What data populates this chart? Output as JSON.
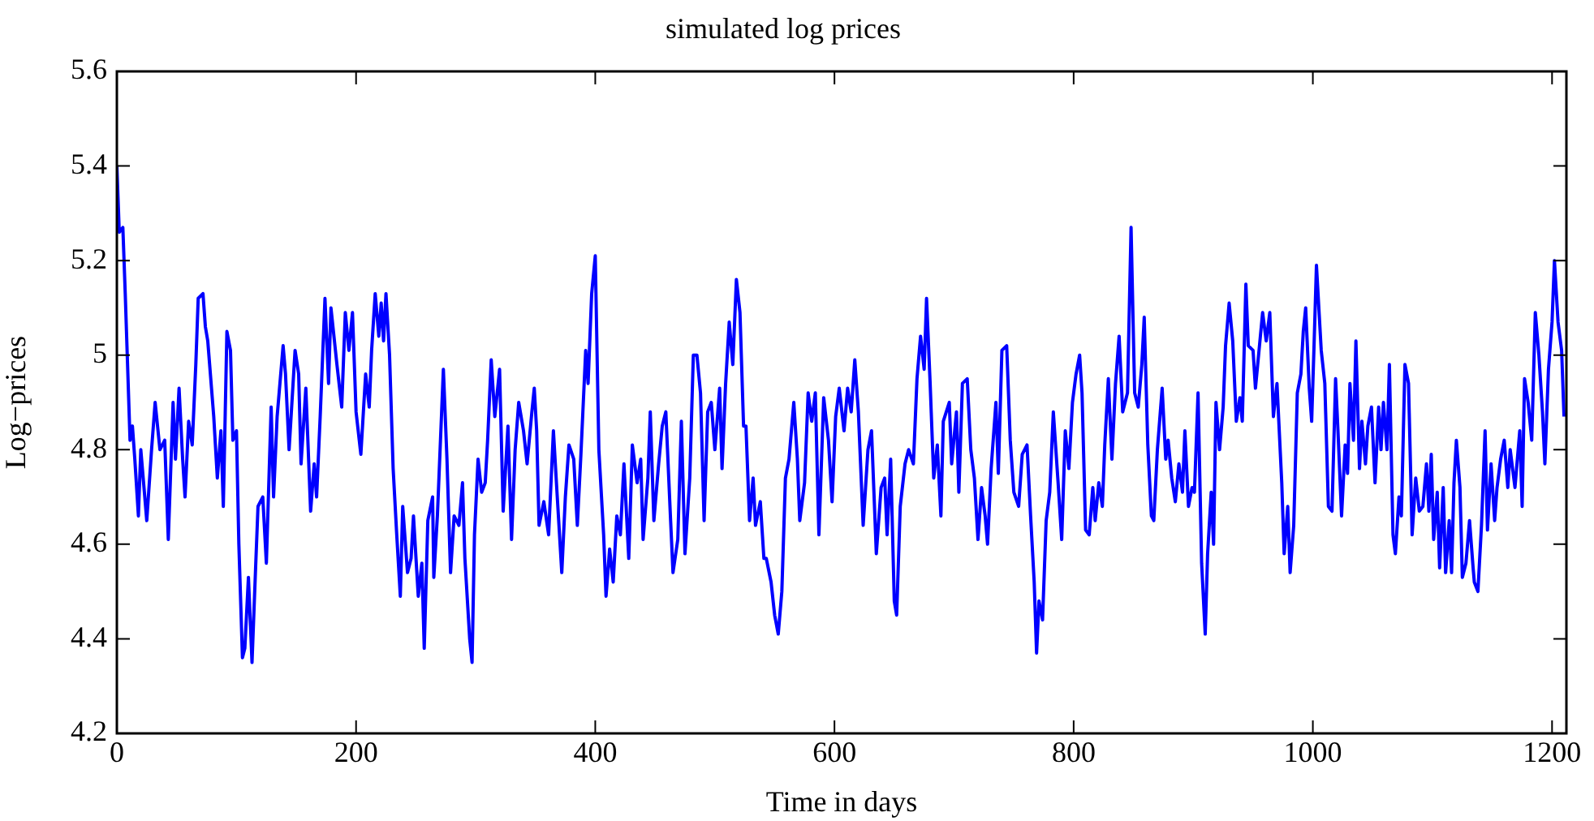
{
  "chart_data": {
    "type": "line",
    "title": "simulated log prices",
    "xlabel": "Time in days",
    "ylabel": "Log−prices",
    "xlim": [
      0,
      1212
    ],
    "xticks": [
      0,
      200,
      400,
      600,
      800,
      1000,
      1200
    ],
    "ylim": [
      4.2,
      5.6
    ],
    "yticks": [
      4.2,
      4.4,
      4.6,
      4.8,
      5,
      5.2,
      5.4,
      5.6
    ],
    "grid": false,
    "series": [
      {
        "color": "#0000ff",
        "x": [
          0,
          2,
          5,
          7,
          11,
          13,
          15,
          18,
          20,
          22,
          25,
          29,
          32,
          36,
          40,
          43,
          47,
          49,
          52,
          55,
          57,
          60,
          63,
          66,
          68,
          72,
          74,
          76,
          81,
          84,
          87,
          89,
          92,
          95,
          97,
          100,
          102,
          105,
          107,
          110,
          113,
          116,
          118,
          122,
          125,
          129,
          131,
          134,
          139,
          141,
          144,
          149,
          152,
          154,
          158,
          162,
          165,
          167,
          170,
          174,
          177,
          179,
          184,
          188,
          191,
          194,
          197,
          200,
          204,
          208,
          211,
          213,
          216,
          219,
          221,
          223,
          225,
          228,
          231,
          234,
          237,
          239,
          243,
          246,
          248,
          252,
          255,
          257,
          260,
          264,
          265,
          268,
          273,
          276,
          279,
          282,
          286,
          289,
          291,
          295,
          297,
          299,
          302,
          305,
          308,
          310,
          313,
          316,
          320,
          323,
          327,
          330,
          333,
          336,
          340,
          343,
          347,
          349,
          351,
          353,
          357,
          361,
          365,
          368,
          372,
          375,
          378,
          382,
          385,
          388,
          392,
          394,
          397,
          400,
          403,
          407,
          409,
          412,
          415,
          418,
          421,
          424,
          428,
          431,
          435,
          438,
          440,
          444,
          446,
          449,
          453,
          456,
          459,
          463,
          465,
          469,
          472,
          475,
          479,
          482,
          485,
          488,
          491,
          494,
          497,
          500,
          504,
          506,
          509,
          512,
          515,
          518,
          521,
          524,
          526,
          529,
          532,
          534,
          538,
          541,
          543,
          547,
          550,
          553,
          556,
          559,
          562,
          566,
          569,
          571,
          575,
          578,
          581,
          584,
          587,
          591,
          595,
          598,
          601,
          604,
          608,
          611,
          614,
          617,
          620,
          624,
          628,
          631,
          635,
          639,
          642,
          644,
          647,
          650,
          652,
          655,
          659,
          662,
          666,
          669,
          672,
          675,
          677,
          680,
          683,
          686,
          689,
          691,
          696,
          698,
          702,
          704,
          707,
          711,
          714,
          717,
          720,
          723,
          726,
          728,
          731,
          735,
          737,
          740,
          744,
          747,
          750,
          754,
          757,
          761,
          764,
          767,
          769,
          771,
          774,
          777,
          780,
          783,
          787,
          790,
          793,
          796,
          799,
          802,
          805,
          807,
          810,
          813,
          816,
          818,
          821,
          824,
          826,
          829,
          832,
          835,
          838,
          841,
          845,
          848,
          851,
          854,
          857,
          859,
          862,
          865,
          867,
          870,
          874,
          877,
          879,
          882,
          885,
          888,
          891,
          893,
          896,
          899,
          901,
          904,
          907,
          910,
          912,
          915,
          917,
          919,
          922,
          925,
          927,
          930,
          933,
          936,
          939,
          941,
          944,
          946,
          950,
          952,
          955,
          958,
          961,
          964,
          967,
          970,
          974,
          976,
          979,
          981,
          984,
          987,
          990,
          992,
          994,
          997,
          999,
          1001,
          1003,
          1007,
          1010,
          1013,
          1016,
          1019,
          1021,
          1024,
          1027,
          1029,
          1031,
          1034,
          1036,
          1039,
          1041,
          1044,
          1046,
          1049,
          1052,
          1055,
          1057,
          1059,
          1062,
          1064,
          1067,
          1069,
          1072,
          1074,
          1077,
          1080,
          1083,
          1086,
          1089,
          1092,
          1095,
          1097,
          1099,
          1101,
          1104,
          1106,
          1109,
          1111,
          1114,
          1116,
          1118,
          1120,
          1123,
          1125,
          1128,
          1131,
          1134,
          1135,
          1138,
          1141,
          1144,
          1146,
          1149,
          1152,
          1154,
          1157,
          1160,
          1163,
          1165,
          1169,
          1173,
          1175,
          1177,
          1180,
          1183,
          1186,
          1189,
          1192,
          1194,
          1197,
          1200,
          1202,
          1205,
          1208,
          1210
        ],
        "values": [
          5.4,
          5.26,
          5.27,
          5.13,
          4.82,
          4.85,
          4.78,
          4.66,
          4.8,
          4.74,
          4.65,
          4.8,
          4.9,
          4.8,
          4.82,
          4.61,
          4.9,
          4.78,
          4.93,
          4.78,
          4.7,
          4.86,
          4.81,
          4.98,
          5.12,
          5.13,
          5.06,
          5.03,
          4.87,
          4.74,
          4.84,
          4.68,
          5.05,
          5.01,
          4.82,
          4.84,
          4.6,
          4.36,
          4.38,
          4.53,
          4.35,
          4.55,
          4.68,
          4.7,
          4.56,
          4.89,
          4.7,
          4.87,
          5.02,
          4.96,
          4.8,
          5.01,
          4.96,
          4.77,
          4.93,
          4.67,
          4.77,
          4.7,
          4.87,
          5.12,
          4.94,
          5.1,
          4.98,
          4.89,
          5.09,
          5.01,
          5.09,
          4.88,
          4.79,
          4.96,
          4.89,
          5.01,
          5.13,
          5.04,
          5.11,
          5.03,
          5.13,
          5.0,
          4.76,
          4.62,
          4.49,
          4.68,
          4.54,
          4.57,
          4.66,
          4.49,
          4.56,
          4.38,
          4.65,
          4.7,
          4.53,
          4.66,
          4.97,
          4.78,
          4.54,
          4.66,
          4.64,
          4.73,
          4.57,
          4.4,
          4.35,
          4.62,
          4.78,
          4.71,
          4.73,
          4.82,
          4.99,
          4.87,
          4.97,
          4.67,
          4.85,
          4.61,
          4.8,
          4.9,
          4.84,
          4.77,
          4.88,
          4.93,
          4.84,
          4.64,
          4.69,
          4.62,
          4.84,
          4.71,
          4.54,
          4.7,
          4.81,
          4.78,
          4.64,
          4.79,
          5.01,
          4.94,
          5.13,
          5.21,
          4.8,
          4.62,
          4.49,
          4.59,
          4.52,
          4.66,
          4.62,
          4.77,
          4.57,
          4.81,
          4.73,
          4.78,
          4.61,
          4.74,
          4.88,
          4.65,
          4.77,
          4.85,
          4.88,
          4.65,
          4.54,
          4.61,
          4.86,
          4.58,
          4.74,
          5.0,
          5.0,
          4.92,
          4.65,
          4.88,
          4.9,
          4.8,
          4.93,
          4.76,
          4.94,
          5.07,
          4.98,
          5.16,
          5.09,
          4.85,
          4.85,
          4.65,
          4.74,
          4.64,
          4.69,
          4.57,
          4.57,
          4.52,
          4.45,
          4.41,
          4.5,
          4.74,
          4.78,
          4.9,
          4.78,
          4.65,
          4.73,
          4.92,
          4.86,
          4.92,
          4.62,
          4.91,
          4.82,
          4.69,
          4.87,
          4.93,
          4.84,
          4.93,
          4.88,
          4.99,
          4.88,
          4.64,
          4.8,
          4.84,
          4.58,
          4.72,
          4.74,
          4.62,
          4.78,
          4.48,
          4.45,
          4.68,
          4.77,
          4.8,
          4.77,
          4.95,
          5.04,
          4.97,
          5.12,
          4.94,
          4.74,
          4.81,
          4.66,
          4.86,
          4.9,
          4.77,
          4.88,
          4.71,
          4.94,
          4.95,
          4.8,
          4.74,
          4.61,
          4.72,
          4.66,
          4.6,
          4.76,
          4.9,
          4.75,
          5.01,
          5.02,
          4.82,
          4.71,
          4.68,
          4.79,
          4.81,
          4.66,
          4.52,
          4.37,
          4.48,
          4.44,
          4.65,
          4.71,
          4.88,
          4.73,
          4.61,
          4.84,
          4.76,
          4.9,
          4.96,
          5.0,
          4.92,
          4.63,
          4.62,
          4.72,
          4.65,
          4.73,
          4.68,
          4.81,
          4.95,
          4.78,
          4.94,
          5.04,
          4.88,
          4.92,
          5.27,
          4.92,
          4.89,
          4.98,
          5.08,
          4.81,
          4.66,
          4.65,
          4.8,
          4.93,
          4.78,
          4.82,
          4.74,
          4.69,
          4.77,
          4.71,
          4.84,
          4.68,
          4.72,
          4.71,
          4.92,
          4.56,
          4.41,
          4.58,
          4.71,
          4.6,
          4.9,
          4.8,
          4.89,
          5.02,
          5.11,
          5.03,
          4.86,
          4.91,
          4.86,
          5.15,
          5.02,
          5.01,
          4.93,
          5.01,
          5.09,
          5.03,
          5.09,
          4.87,
          4.94,
          4.73,
          4.58,
          4.68,
          4.54,
          4.64,
          4.92,
          4.96,
          5.05,
          5.1,
          4.93,
          4.86,
          5.02,
          5.19,
          5.01,
          4.94,
          4.68,
          4.67,
          4.95,
          4.84,
          4.66,
          4.81,
          4.75,
          4.94,
          4.82,
          5.03,
          4.76,
          4.86,
          4.77,
          4.85,
          4.89,
          4.73,
          4.89,
          4.8,
          4.9,
          4.8,
          4.98,
          4.62,
          4.58,
          4.7,
          4.66,
          4.98,
          4.94,
          4.62,
          4.74,
          4.67,
          4.68,
          4.77,
          4.67,
          4.79,
          4.61,
          4.71,
          4.55,
          4.72,
          4.54,
          4.65,
          4.54,
          4.73,
          4.82,
          4.72,
          4.53,
          4.56,
          4.65,
          4.55,
          4.52,
          4.5,
          4.64,
          4.84,
          4.63,
          4.77,
          4.65,
          4.72,
          4.78,
          4.82,
          4.72,
          4.8,
          4.72,
          4.84,
          4.68,
          4.95,
          4.9,
          4.82,
          5.09,
          5.0,
          4.88,
          4.77,
          4.97,
          5.07,
          5.2,
          5.07,
          5.01,
          4.87
        ]
      }
    ]
  }
}
